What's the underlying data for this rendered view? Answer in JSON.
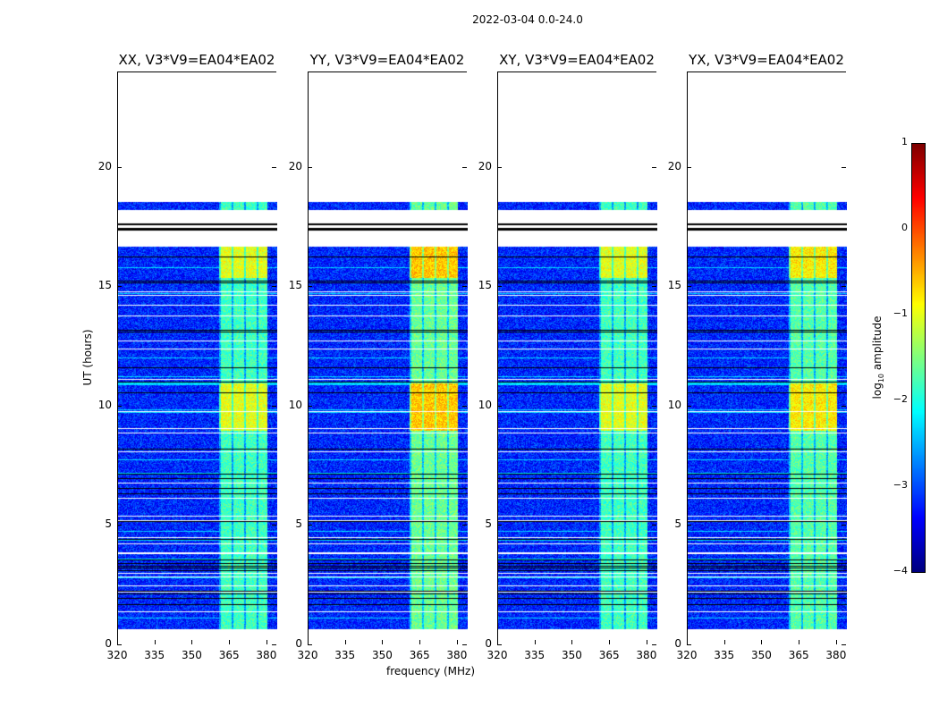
{
  "chart_data": {
    "type": "heatmap",
    "title": "2022-03-04 0.0-24.0",
    "xlabel": "frequency (MHz)",
    "ylabel": "UT (hours)",
    "xlim": [
      320,
      384
    ],
    "ylim": [
      0,
      24
    ],
    "xticks": [
      320,
      335,
      350,
      365,
      380
    ],
    "yticks": [
      0,
      5,
      10,
      15,
      20
    ],
    "panels": [
      {
        "title": "XX, V3*V9=EA04*EA02",
        "band_level": -1.8,
        "bright_level": -1.0
      },
      {
        "title": "YY, V3*V9=EA04*EA02",
        "band_level": -1.6,
        "bright_level": -0.6
      },
      {
        "title": "XY, V3*V9=EA04*EA02",
        "band_level": -1.8,
        "bright_level": -1.0
      },
      {
        "title": "YX, V3*V9=EA04*EA02",
        "band_level": -1.7,
        "bright_level": -0.8
      }
    ],
    "data_time_ranges_hours": [
      [
        0.7,
        16.7
      ],
      [
        18.25,
        18.6
      ]
    ],
    "flagged_black_lines_hours": [
      17.45,
      17.65
    ],
    "background_level": -3.2,
    "rfi_band_mhz": [
      360.5,
      380
    ],
    "bright_time_ranges_hours": [
      [
        9.0,
        11.0
      ],
      [
        15.4,
        16.7
      ]
    ],
    "colorbar": {
      "label": "log10 amplitude",
      "label_main": "log",
      "label_sub": "10",
      "label_rest": " amplitude",
      "range": [
        -4,
        1
      ],
      "ticks": [
        1,
        0,
        -1,
        -2,
        -3,
        -4
      ],
      "tick_labels": [
        "1",
        "0",
        "−1",
        "−2",
        "−3",
        "−4"
      ],
      "colormap": "jet"
    }
  }
}
